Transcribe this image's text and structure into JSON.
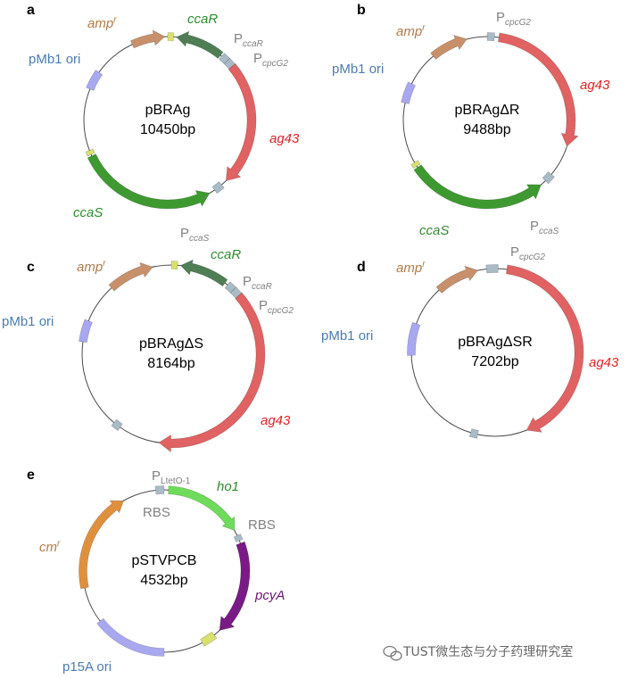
{
  "colors": {
    "amp": "#C8906A",
    "ori": "#A8A8F0",
    "ccaR": "#4F7E55",
    "ccaS": "#3E9A30",
    "ag43": "#E06262",
    "promoter": "#A9BBC6",
    "ho1": "#6EDB5A",
    "pcyA": "#7A1A86",
    "cm": "#E0903C",
    "term": "#D8E070",
    "amp_text": "#B07A4A",
    "ori_text": "#4A7BB0",
    "ccaR_text": "#2E8B2E",
    "ccaS_text": "#2E8B2E",
    "ag43_text": "#E02020",
    "promoter_text": "#808080",
    "pcyA_text": "#6B1470"
  },
  "panels": [
    {
      "letter": "a",
      "name": "pBRAg",
      "size": "10450bp",
      "labels": {
        "amp": "amp",
        "amp_sup": "r",
        "ori": "pMb1 ori",
        "ccaR": "ccaR",
        "pccaR": "P",
        "pccaR_sub": "ccaR",
        "pcpcG2": "P",
        "pcpcG2_sub": "cpcG2",
        "ag43": "ag43",
        "ccaS": "ccaS",
        "pccaS": "P",
        "pccaS_sub": "ccaS"
      }
    },
    {
      "letter": "b",
      "name": "pBRAgΔR",
      "size": "9488bp",
      "labels": {
        "amp": "amp",
        "amp_sup": "r",
        "ori": "pMb1 ori",
        "pcpcG2": "P",
        "pcpcG2_sub": "cpcG2",
        "ag43": "ag43",
        "ccaS": "ccaS",
        "pccaS": "P",
        "pccaS_sub": "ccaS"
      }
    },
    {
      "letter": "c",
      "name": "pBRAgΔS",
      "size": "8164bp",
      "labels": {
        "amp": "amp",
        "amp_sup": "r",
        "ori": "pMb1 ori",
        "ccaR": "ccaR",
        "pccaR": "P",
        "pccaR_sub": "ccaR",
        "pcpcG2": "P",
        "pcpcG2_sub": "cpcG2",
        "ag43": "ag43"
      }
    },
    {
      "letter": "d",
      "name": "pBRAgΔSR",
      "size": "7202bp",
      "labels": {
        "amp": "amp",
        "amp_sup": "r",
        "ori": "pMb1 ori",
        "pcpcG2": "P",
        "pcpcG2_sub": "cpcG2",
        "ag43": "ag43"
      }
    },
    {
      "letter": "e",
      "name": "pSTVPCB",
      "size": "4532bp",
      "labels": {
        "cm": "cm",
        "cm_sup": "r",
        "ori": "p15A ori",
        "pltet": "P",
        "pltet_sub": "LtetO-1",
        "rbs1": "RBS",
        "rbs2": "RBS",
        "ho1": "ho1",
        "pcyA": "pcyA"
      }
    }
  ],
  "watermark": "TUST微生态与分子药理研究室"
}
